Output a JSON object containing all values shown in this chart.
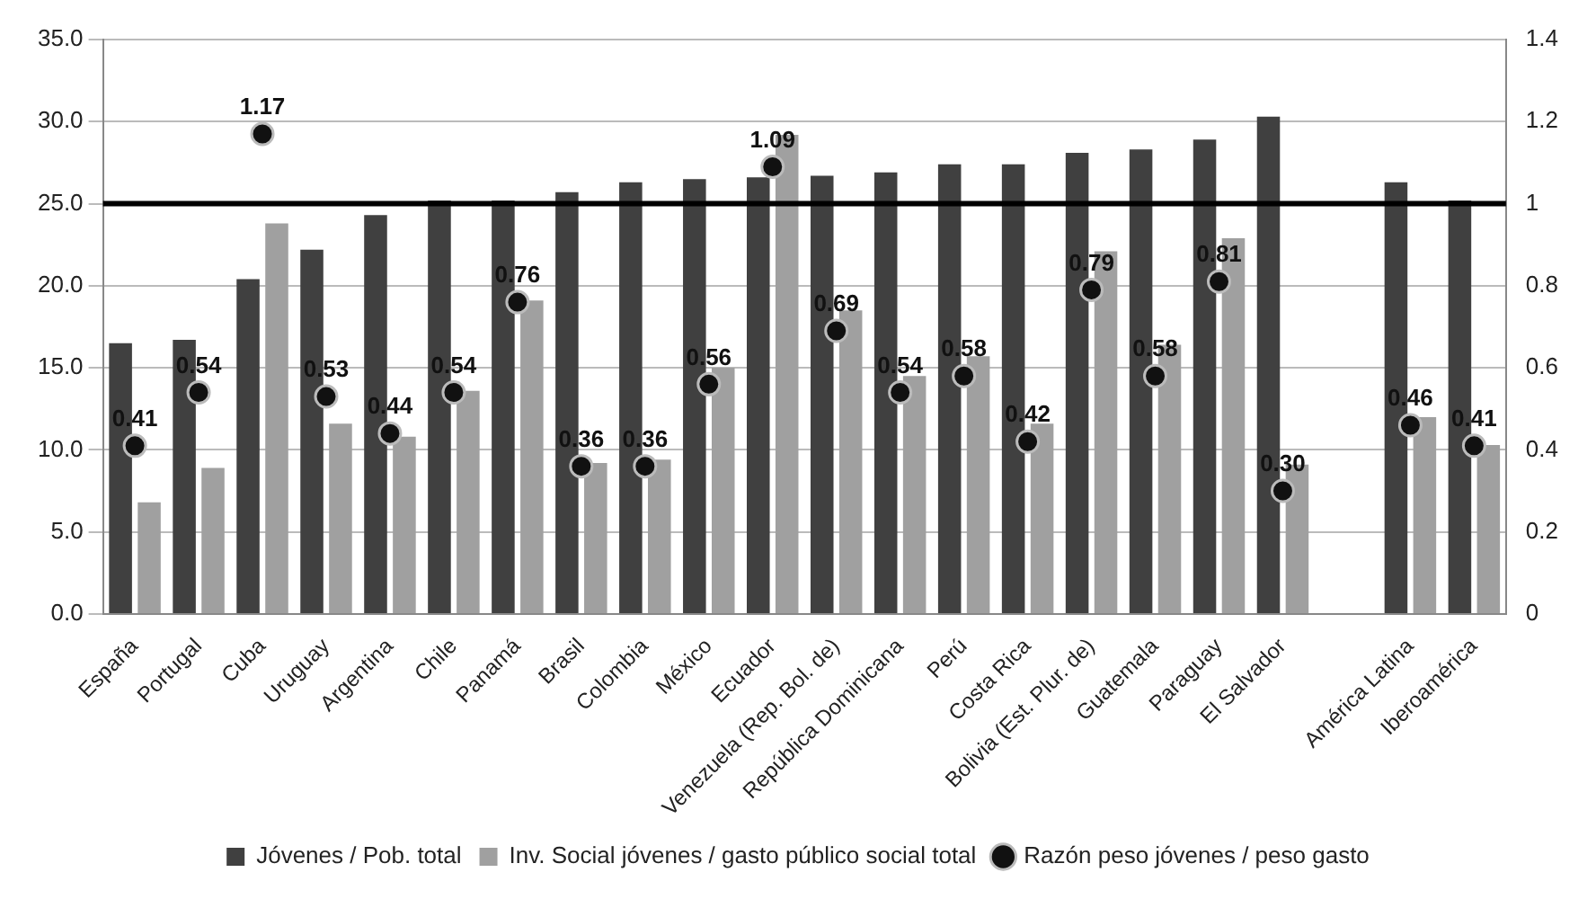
{
  "chart_data": {
    "type": "bar",
    "categories": [
      "España",
      "Portugal",
      "Cuba",
      "Uruguay",
      "Argentina",
      "Chile",
      "Panamá",
      "Brasil",
      "Colombia",
      "México",
      "Ecuador",
      "Venezuela (Rep. Bol. de)",
      "República Dominicana",
      "Perú",
      "Costa Rica",
      "Bolivia (Est. Plur. de)",
      "Guatemala",
      "Paraguay",
      "El Salvador",
      null,
      "América Latina",
      "Iberoamérica"
    ],
    "series": [
      {
        "name": "Jóvenes / Pob. total",
        "color": "#404040",
        "values": [
          16.5,
          16.7,
          20.4,
          22.2,
          24.3,
          25.2,
          25.2,
          25.7,
          26.3,
          26.5,
          26.6,
          26.7,
          26.9,
          27.4,
          27.4,
          28.1,
          28.3,
          28.9,
          30.3,
          null,
          26.3,
          25.2
        ]
      },
      {
        "name": "Inv. Social jóvenes / gasto público social total",
        "color": "#a0a0a0",
        "values": [
          6.8,
          8.9,
          23.8,
          11.6,
          10.8,
          13.6,
          19.1,
          9.2,
          9.4,
          15.0,
          29.2,
          18.5,
          14.5,
          15.7,
          11.6,
          22.1,
          16.4,
          22.9,
          9.1,
          null,
          12.0,
          10.3
        ]
      },
      {
        "name": "Razón peso jóvenes / peso gasto",
        "type": "scatter",
        "axis": "y2",
        "color": "#111111",
        "values": [
          0.41,
          0.54,
          1.17,
          0.53,
          0.44,
          0.54,
          0.76,
          0.36,
          0.36,
          0.56,
          1.09,
          0.69,
          0.54,
          0.58,
          0.42,
          0.79,
          0.58,
          0.81,
          0.3,
          null,
          0.46,
          0.41
        ],
        "value_labels": [
          "0.41",
          "0.54",
          "1.17",
          "0.53",
          "0.44",
          "0.54",
          "0.76",
          "0.36",
          "0.36",
          "0.56",
          "1.09",
          "0.69",
          "0.54",
          "0.58",
          "0.42",
          "0.79",
          "0.58",
          "0.81",
          "0.30",
          null,
          "0.46",
          "0.41"
        ]
      }
    ],
    "ylim": [
      0,
      35
    ],
    "yticks": [
      {
        "value": 0,
        "label": "0.0"
      },
      {
        "value": 5,
        "label": "5.0"
      },
      {
        "value": 10,
        "label": "10.0"
      },
      {
        "value": 15,
        "label": "15.0"
      },
      {
        "value": 20,
        "label": "20.0"
      },
      {
        "value": 25,
        "label": "25.0"
      },
      {
        "value": 30,
        "label": "30.0"
      },
      {
        "value": 35,
        "label": "35.0"
      }
    ],
    "y2lim": [
      0,
      1.4
    ],
    "y2ticks": [
      0,
      0.2,
      0.4,
      0.6,
      0.8,
      1,
      1.2,
      1.4
    ],
    "ref_lines": [
      {
        "axis": "y2",
        "value": 1,
        "color": "#000000"
      }
    ],
    "grid": "y",
    "legend": "bottom",
    "marker": "circle"
  }
}
